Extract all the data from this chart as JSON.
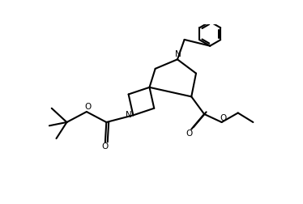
{
  "bg_color": "#ffffff",
  "line_color": "#000000",
  "line_width": 1.5,
  "figsize": [
    3.74,
    2.52
  ],
  "dpi": 100,
  "xlim": [
    0,
    10
  ],
  "ylim": [
    0,
    6.75
  ]
}
